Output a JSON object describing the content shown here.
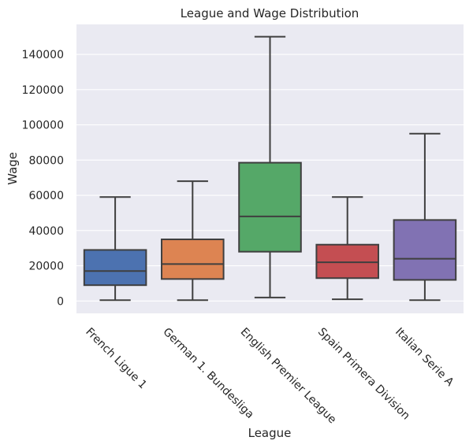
{
  "chart_data": {
    "type": "box",
    "title": "League and Wage Distribution",
    "xlabel": "League",
    "ylabel": "Wage",
    "ylim": [
      -7000,
      157000
    ],
    "yticks": [
      0,
      20000,
      40000,
      60000,
      80000,
      100000,
      120000,
      140000
    ],
    "ytick_labels": [
      "0",
      "20000",
      "40000",
      "60000",
      "80000",
      "100000",
      "120000",
      "140000"
    ],
    "grid": true,
    "categories": [
      "French Ligue 1",
      "German 1. Bundesliga",
      "English Premier League",
      "Spain Primera Division",
      "Italian Serie A"
    ],
    "series": [
      {
        "whisker_low": 500,
        "q1": 9000,
        "median": 17000,
        "q3": 29000,
        "whisker_high": 59000,
        "color": "#4c72b0"
      },
      {
        "whisker_low": 500,
        "q1": 12500,
        "median": 21000,
        "q3": 35000,
        "whisker_high": 68000,
        "color": "#dd8452"
      },
      {
        "whisker_low": 2000,
        "q1": 28000,
        "median": 48000,
        "q3": 78500,
        "whisker_high": 150000,
        "color": "#55a868"
      },
      {
        "whisker_low": 1000,
        "q1": 13000,
        "median": 22000,
        "q3": 32000,
        "whisker_high": 59000,
        "color": "#c44e52"
      },
      {
        "whisker_low": 500,
        "q1": 12000,
        "median": 24000,
        "q3": 46000,
        "whisker_high": 95000,
        "color": "#8172b3"
      }
    ],
    "background_color": "#eaeaf2",
    "grid_color": "#ffffff",
    "line_color": "#3f3f3f"
  }
}
